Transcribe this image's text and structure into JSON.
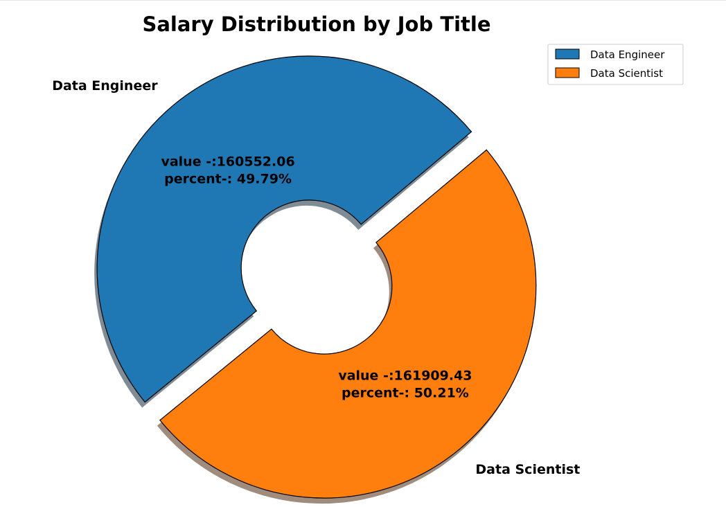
{
  "chart_data": {
    "type": "pie",
    "title": "Salary Distribution by Job Title",
    "donut": true,
    "shadow": true,
    "exploded": true,
    "legend_position": "top-right",
    "slices": [
      {
        "label": "Data Engineer",
        "value": 160552.06,
        "percent": 49.79,
        "color": "#1f77b4",
        "value_text": "value -:160552.06",
        "percent_text": "percent-: 49.79%"
      },
      {
        "label": "Data Scientist",
        "value": 161909.43,
        "percent": 50.21,
        "color": "#ff7f0e",
        "value_text": "value -:161909.43",
        "percent_text": "percent-: 50.21%"
      }
    ],
    "legend": [
      "Data Engineer",
      "Data Scientist"
    ]
  }
}
